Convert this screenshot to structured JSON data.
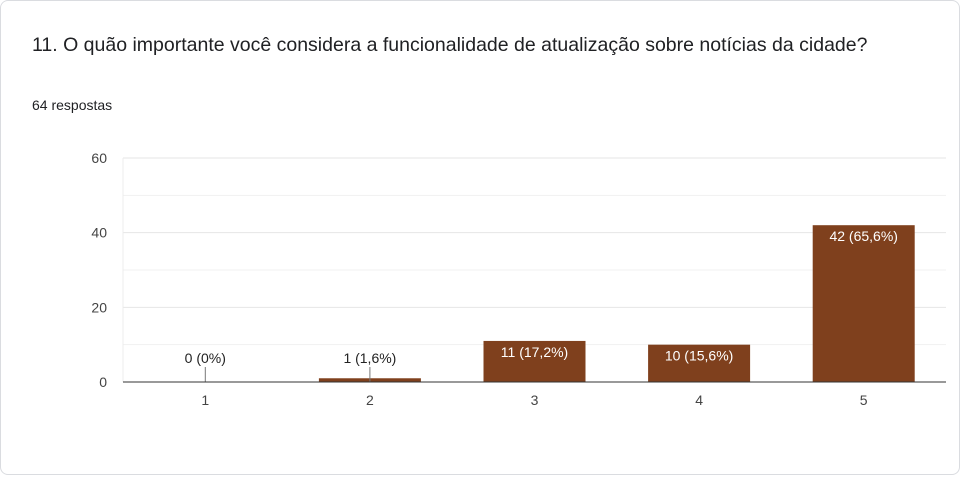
{
  "question": {
    "title": "11. O quão importante você considera a funcionalidade de atualização sobre notícias da cidade?",
    "responses": "64 respostas"
  },
  "colors": {
    "bar": "#7f401d",
    "grid": "#e6e6e6",
    "axis": "#333333",
    "label_inside": "#ffffff",
    "label_outside": "#222222"
  },
  "chart_data": {
    "type": "bar",
    "categories": [
      "1",
      "2",
      "3",
      "4",
      "5"
    ],
    "values": [
      0,
      1,
      11,
      10,
      42
    ],
    "data_labels": [
      "0 (0%)",
      "1 (1,6%)",
      "11 (17,2%)",
      "10 (15,6%)",
      "42 (65,6%)"
    ],
    "ylim": [
      0,
      60
    ],
    "yticks": [
      0,
      20,
      40,
      60
    ],
    "minor_gridlines": [
      10,
      30,
      50
    ],
    "grid": true,
    "legend": "none"
  }
}
